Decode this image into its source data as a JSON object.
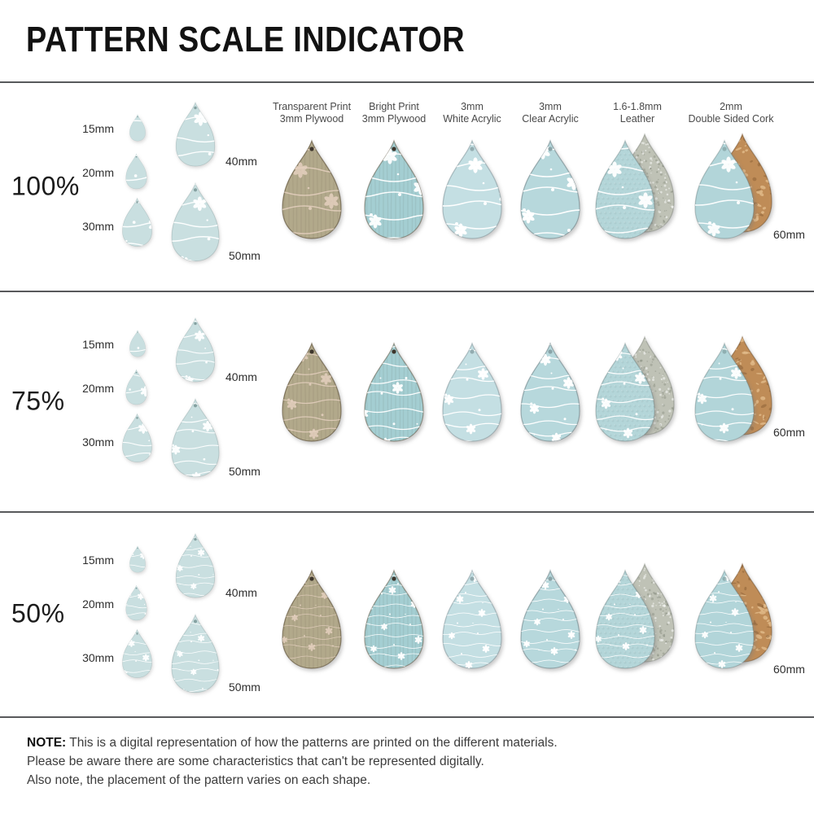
{
  "title": "PATTERN SCALE INDICATOR",
  "columns": [
    {
      "line1": "Transparent Print",
      "line2": "3mm Plywood"
    },
    {
      "line1": "Bright Print",
      "line2": "3mm Plywood"
    },
    {
      "line1": "3mm",
      "line2": "White Acrylic"
    },
    {
      "line1": "3mm",
      "line2": "Clear Acrylic"
    },
    {
      "line1": "1.6-1.8mm",
      "line2": "Leather"
    },
    {
      "line1": "2mm",
      "line2": "Double Sided Cork"
    }
  ],
  "rows": [
    {
      "scale": "100%"
    },
    {
      "scale": "75%"
    },
    {
      "scale": "50%"
    }
  ],
  "sizes": [
    "15mm",
    "20mm",
    "30mm",
    "40mm",
    "50mm"
  ],
  "sample_size_label": "60mm",
  "note": {
    "label": "NOTE:",
    "line1": "This is a digital representation of how the patterns are printed on the different materials.",
    "line2": "Please be aware there are some characteristics that can't be represented digitally.",
    "line3": "Also note, the placement of the pattern varies on each shape."
  },
  "colors": {
    "chart_drop": "#c9dfe0",
    "plywood_tan": "#b2a98b",
    "plywood_tan_pattern": "#e8d2c2",
    "plywood_blue": "#a4ced2",
    "acrylic_white": "#c4dfe3",
    "acrylic_clear": "#b7d8dc",
    "leather_front": "#b4d6d9",
    "leather_back": "#bfc2b6",
    "cork_front": "#b2d5d9",
    "cork_back": "#bf8c57",
    "pattern_white": "#ffffff",
    "separator": "#58595b",
    "text_dark": "#2e2e2e",
    "text_gray": "#4a4a4a"
  }
}
